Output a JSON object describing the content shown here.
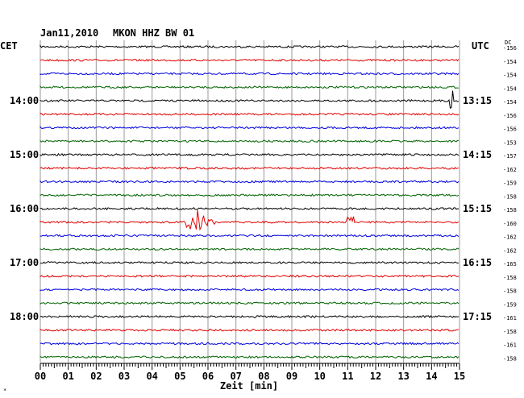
{
  "header": {
    "date": "Jan11,2010",
    "station": "MKON HHZ BW 01",
    "left_tz": "CET",
    "right_tz": "UTC",
    "dc_label": "DC"
  },
  "left_hours": [
    "14:00",
    "15:00",
    "16:00",
    "17:00",
    "18:00"
  ],
  "right_hours": [
    "13:15",
    "14:15",
    "15:15",
    "16:15",
    "17:15"
  ],
  "dc_values": [
    "-156",
    "-154",
    "-154",
    "-154",
    "-154",
    "-156",
    "-156",
    "-153",
    "-157",
    "-162",
    "-159",
    "-158",
    "-158",
    "-160",
    "-162",
    "-162",
    "-165",
    "-158",
    "-158",
    "-159",
    "-161",
    "-158",
    "-161",
    "-158"
  ],
  "x_ticks": [
    "00",
    "01",
    "02",
    "03",
    "04",
    "05",
    "06",
    "07",
    "08",
    "09",
    "10",
    "11",
    "12",
    "13",
    "14",
    "15"
  ],
  "x_label": "Zeit [min]",
  "trace_colors": [
    "#000000",
    "#e00000",
    "#0000e0",
    "#006400"
  ],
  "events": [
    {
      "trace": 13,
      "minute": 5.4,
      "amplitude": "large"
    },
    {
      "trace": 13,
      "minute": 11.1,
      "amplitude": "small"
    },
    {
      "trace": 4,
      "minute": 14.7,
      "amplitude": "spike"
    }
  ]
}
